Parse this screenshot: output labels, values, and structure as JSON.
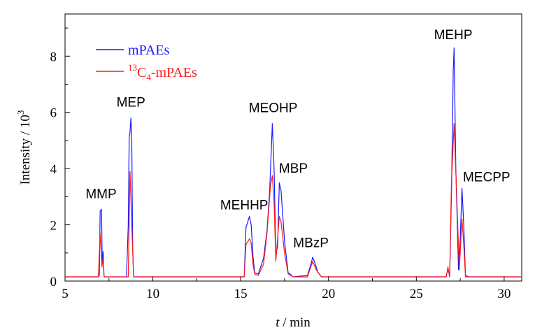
{
  "chart_data": {
    "type": "line",
    "xlabel_italic": "t",
    "xlabel_rest": " / min",
    "ylabel_base": "Intensity / 10",
    "ylabel_sup": "3",
    "xlim": [
      5,
      31
    ],
    "ylim": [
      0,
      9.5
    ],
    "xticks": [
      5,
      10,
      15,
      20,
      25,
      30
    ],
    "yticks": [
      0,
      2,
      4,
      6,
      8
    ],
    "legend_position": "top-left",
    "legend": [
      {
        "id": "blue",
        "text": "mPAEs",
        "color": "#1a1aff"
      },
      {
        "id": "red",
        "sup": "13",
        "base": "C",
        "sub": "4",
        "rest": "-mPAEs",
        "color": "#ff1a1a"
      }
    ],
    "series": [
      {
        "name": "mPAEs",
        "color": "#1a1aff",
        "points": [
          [
            5,
            0.15
          ],
          [
            6.85,
            0.15
          ],
          [
            6.95,
            0.2
          ],
          [
            7.0,
            2.5
          ],
          [
            7.08,
            2.55
          ],
          [
            7.12,
            0.6
          ],
          [
            7.17,
            1.05
          ],
          [
            7.22,
            0.15
          ],
          [
            8.5,
            0.15
          ],
          [
            8.6,
            2.0
          ],
          [
            8.65,
            5.1
          ],
          [
            8.7,
            5.3
          ],
          [
            8.75,
            5.8
          ],
          [
            8.8,
            5.0
          ],
          [
            8.85,
            1.2
          ],
          [
            8.9,
            0.15
          ],
          [
            15.2,
            0.15
          ],
          [
            15.3,
            1.9
          ],
          [
            15.4,
            2.1
          ],
          [
            15.5,
            2.3
          ],
          [
            15.6,
            2.0
          ],
          [
            15.7,
            0.9
          ],
          [
            15.8,
            0.3
          ],
          [
            16.0,
            0.25
          ],
          [
            16.3,
            0.8
          ],
          [
            16.5,
            1.8
          ],
          [
            16.65,
            3.2
          ],
          [
            16.8,
            5.6
          ],
          [
            16.9,
            4.0
          ],
          [
            17.0,
            1.0
          ],
          [
            17.1,
            1.2
          ],
          [
            17.2,
            3.5
          ],
          [
            17.3,
            3.2
          ],
          [
            17.5,
            1.4
          ],
          [
            17.7,
            0.3
          ],
          [
            18.0,
            0.15
          ],
          [
            18.8,
            0.2
          ],
          [
            19.0,
            0.6
          ],
          [
            19.1,
            0.85
          ],
          [
            19.2,
            0.7
          ],
          [
            19.4,
            0.3
          ],
          [
            19.6,
            0.15
          ],
          [
            26.7,
            0.15
          ],
          [
            26.8,
            0.45
          ],
          [
            26.9,
            0.15
          ],
          [
            27.0,
            3.0
          ],
          [
            27.1,
            7.5
          ],
          [
            27.15,
            8.3
          ],
          [
            27.25,
            4.0
          ],
          [
            27.4,
            0.4
          ],
          [
            27.5,
            1.5
          ],
          [
            27.6,
            3.3
          ],
          [
            27.7,
            2.0
          ],
          [
            27.8,
            0.2
          ],
          [
            28.0,
            0.15
          ],
          [
            31,
            0.15
          ]
        ]
      },
      {
        "name": "13C4-mPAEs",
        "color": "#ff1a1a",
        "points": [
          [
            5,
            0.15
          ],
          [
            6.9,
            0.15
          ],
          [
            7.0,
            1.7
          ],
          [
            7.1,
            0.5
          ],
          [
            7.17,
            0.8
          ],
          [
            7.22,
            0.15
          ],
          [
            8.6,
            0.15
          ],
          [
            8.7,
            3.9
          ],
          [
            8.8,
            2.0
          ],
          [
            8.9,
            0.15
          ],
          [
            15.2,
            0.15
          ],
          [
            15.3,
            1.3
          ],
          [
            15.5,
            1.5
          ],
          [
            15.6,
            1.35
          ],
          [
            15.7,
            0.6
          ],
          [
            15.8,
            0.25
          ],
          [
            16.0,
            0.2
          ],
          [
            16.3,
            0.6
          ],
          [
            16.5,
            1.7
          ],
          [
            16.7,
            3.4
          ],
          [
            16.8,
            3.75
          ],
          [
            16.9,
            2.8
          ],
          [
            17.0,
            0.7
          ],
          [
            17.2,
            2.3
          ],
          [
            17.3,
            2.1
          ],
          [
            17.5,
            1.0
          ],
          [
            17.7,
            0.25
          ],
          [
            18.0,
            0.15
          ],
          [
            18.8,
            0.15
          ],
          [
            19.1,
            0.7
          ],
          [
            19.3,
            0.4
          ],
          [
            19.6,
            0.15
          ],
          [
            26.7,
            0.15
          ],
          [
            26.8,
            0.5
          ],
          [
            26.9,
            0.15
          ],
          [
            27.0,
            3.5
          ],
          [
            27.15,
            5.6
          ],
          [
            27.3,
            3.0
          ],
          [
            27.45,
            0.4
          ],
          [
            27.6,
            2.2
          ],
          [
            27.7,
            1.3
          ],
          [
            27.8,
            0.15
          ],
          [
            31,
            0.15
          ]
        ]
      }
    ],
    "annotations": [
      {
        "text": "MMP",
        "x": 7.05,
        "y": 2.95
      },
      {
        "text": "MEP",
        "x": 8.75,
        "y": 6.2
      },
      {
        "text": "MEHHP",
        "x": 15.2,
        "y": 2.55
      },
      {
        "text": "MEOHP",
        "x": 16.85,
        "y": 6.0
      },
      {
        "text": "MBP",
        "x": 18.0,
        "y": 3.85
      },
      {
        "text": "MBzP",
        "x": 19.0,
        "y": 1.2
      },
      {
        "text": "MEHP",
        "x": 27.1,
        "y": 8.6
      },
      {
        "text": "MECPP",
        "x": 29.0,
        "y": 3.55
      }
    ]
  }
}
